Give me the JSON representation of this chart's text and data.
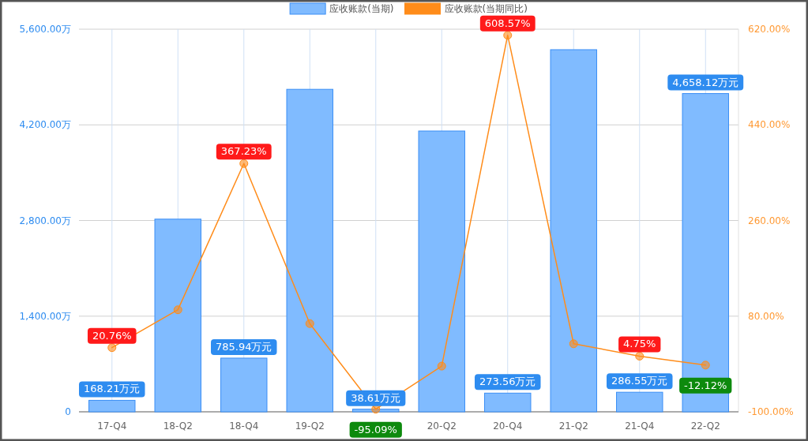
{
  "chart_data": {
    "type": "bar",
    "categories": [
      "17-Q4",
      "18-Q2",
      "18-Q4",
      "19-Q2",
      null,
      "20-Q2",
      "20-Q4",
      "21-Q2",
      "21-Q4",
      "22-Q2"
    ],
    "series": [
      {
        "name": "应收账款(当期)",
        "color": "#80bbff",
        "values": [
          168.21,
          2820,
          785.94,
          4720,
          38.61,
          4110,
          273.56,
          5300,
          286.55,
          4658.12
        ],
        "value_labels": [
          "168.21万元",
          null,
          "785.94万元",
          null,
          "38.61万元",
          null,
          "273.56万元",
          null,
          "286.55万元",
          "4,658.12万元"
        ]
      },
      {
        "name": "应收账款(当期同比)",
        "type": "line",
        "axis": "y2",
        "color": "#ff8c1a",
        "marker": "circle",
        "values": [
          20.76,
          92,
          367.23,
          66,
          -95.09,
          -14,
          608.57,
          28,
          4.75,
          -12.12
        ],
        "value_labels": [
          "20.76%",
          null,
          "367.23%",
          null,
          "-95.09%",
          null,
          "608.57%",
          null,
          "4.75%",
          "-12.12%"
        ]
      }
    ],
    "ylim": [
      0,
      5600
    ],
    "yticks": [
      0,
      {
        "value": 1400,
        "label": "1,400.00万"
      },
      {
        "value": 2800,
        "label": "2,800.00万"
      },
      {
        "value": 4200,
        "label": "4,200.00万"
      },
      {
        "value": 5600,
        "label": "5,600.00万"
      }
    ],
    "y2lim": [
      -100,
      620
    ],
    "y2ticks": [
      {
        "value": -100,
        "label": "-100.00%"
      },
      {
        "value": 80,
        "label": "80.00%"
      },
      {
        "value": 260,
        "label": "260.00%"
      },
      {
        "value": 440,
        "label": "440.00%"
      },
      {
        "value": 620,
        "label": "620.00%"
      }
    ],
    "grid": true,
    "legend": "top"
  }
}
